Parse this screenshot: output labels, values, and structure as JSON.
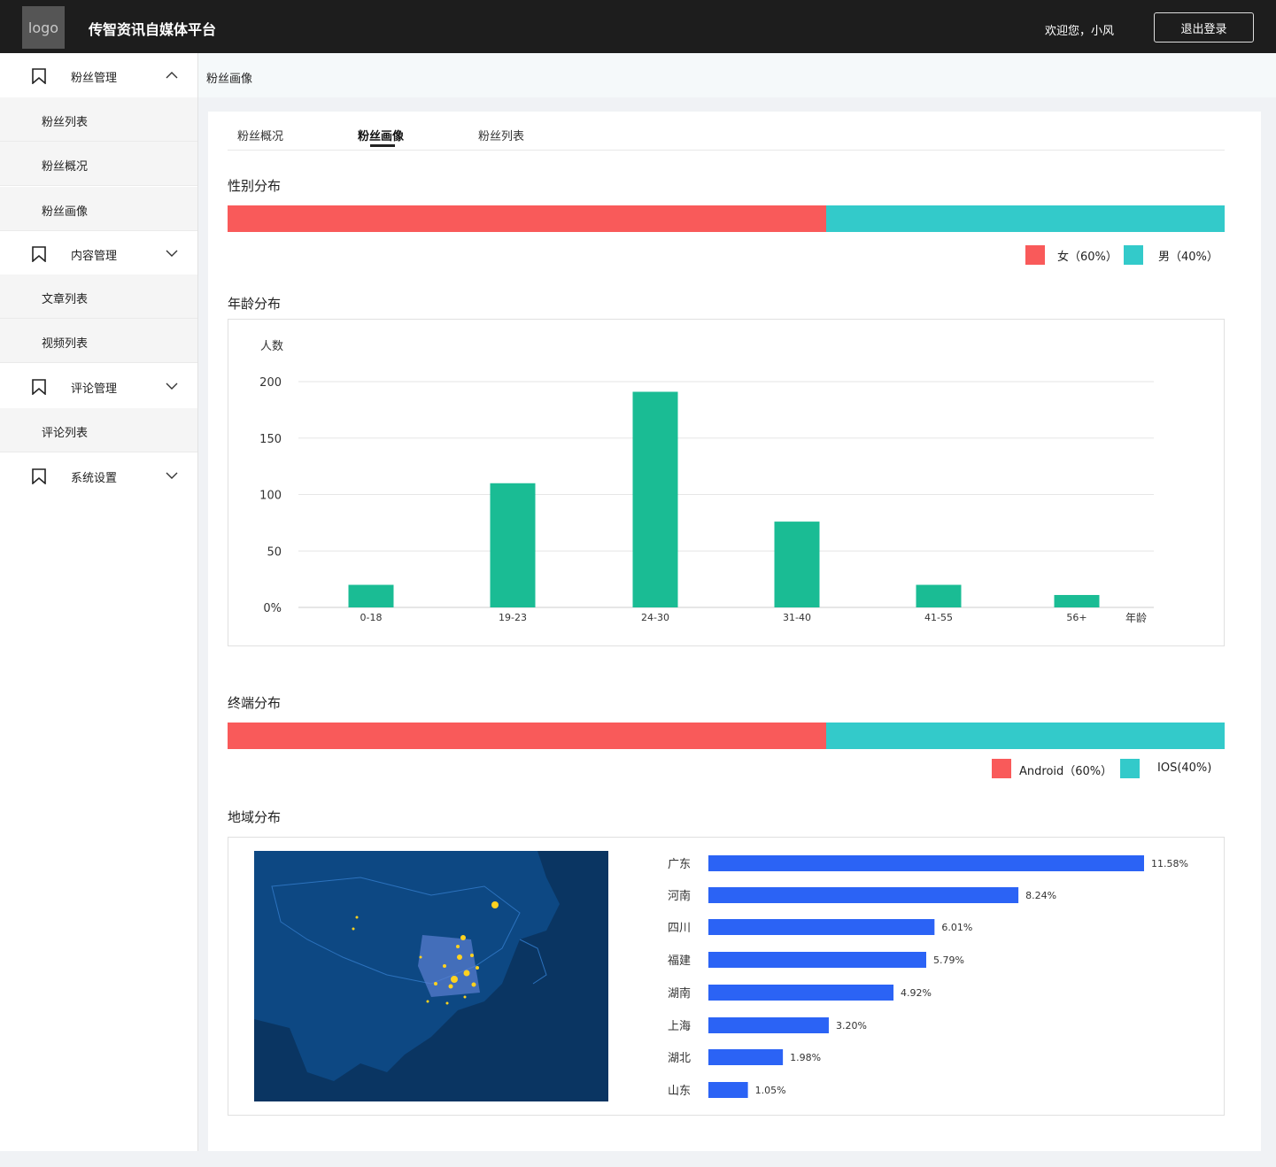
{
  "header": {
    "logo": "logo",
    "title": "传智资讯自媒体平台",
    "welcome": "欢迎您，小风",
    "logout_label": "退出登录"
  },
  "sidebar": {
    "groups": [
      {
        "label": "粉丝管理",
        "expanded": true,
        "items": [
          "粉丝列表",
          "粉丝概况",
          "粉丝画像"
        ]
      },
      {
        "label": "内容管理",
        "expanded": false,
        "items": [
          "文章列表",
          "视频列表"
        ]
      },
      {
        "label": "评论管理",
        "expanded": false,
        "items": [
          "评论列表"
        ]
      },
      {
        "label": "系统设置",
        "expanded": false,
        "items": []
      }
    ]
  },
  "breadcrumb": "粉丝画像",
  "tabs": [
    {
      "label": "粉丝概况",
      "active": false
    },
    {
      "label": "粉丝画像",
      "active": true
    },
    {
      "label": "粉丝列表",
      "active": false
    }
  ],
  "gender": {
    "title": "性别分布",
    "female": {
      "label": "女（60%）",
      "value": 60,
      "color": "#f95a5a"
    },
    "male": {
      "label": "男（40%）",
      "value": 40,
      "color": "#33caca"
    }
  },
  "age": {
    "title": "年龄分布"
  },
  "terminal": {
    "title": "终端分布",
    "android": {
      "label": "Android（60%）",
      "value": 60,
      "color": "#f95a5a"
    },
    "ios": {
      "label": "IOS(40%)",
      "value": 40,
      "color": "#33caca"
    }
  },
  "region": {
    "title": "地域分布"
  },
  "chart_data": [
    {
      "type": "bar",
      "ylabel": "人数",
      "xlabel": "年龄",
      "categories": [
        "0-18",
        "19-23",
        "24-30",
        "31-40",
        "41-55",
        "56+"
      ],
      "values": [
        20,
        110,
        191,
        76,
        20,
        11
      ],
      "ylim": [
        0,
        200
      ],
      "yticks": [
        "0%",
        "50",
        "100",
        "150",
        "200"
      ],
      "grid": true,
      "color": "#1abc94"
    },
    {
      "type": "bar",
      "orientation": "horizontal",
      "categories": [
        "广东",
        "河南",
        "四川",
        "福建",
        "湖南",
        "上海",
        "湖北",
        "山东"
      ],
      "values": [
        11.58,
        8.24,
        6.01,
        5.79,
        4.92,
        3.2,
        1.98,
        1.05
      ],
      "labels": [
        "11.58%",
        "8.24%",
        "6.01%",
        "5.79%",
        "4.92%",
        "3.20%",
        "1.98%",
        "1.05%"
      ],
      "color": "#2b63f5"
    }
  ]
}
